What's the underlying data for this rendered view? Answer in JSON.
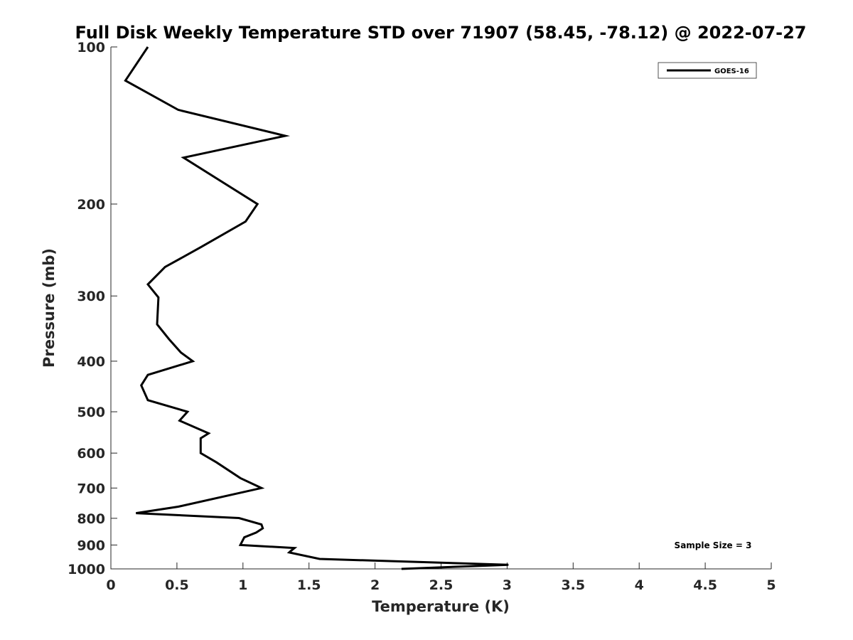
{
  "chart_data": {
    "type": "line",
    "title": "Full Disk Weekly Temperature STD over 71907 (58.45, -78.12) @ 2022-07-27",
    "xlabel": "Temperature (K)",
    "ylabel": "Pressure (mb)",
    "xlim": [
      0,
      5
    ],
    "ylim": [
      100,
      1000
    ],
    "y_scale": "log",
    "y_reversed": true,
    "grid": false,
    "legend_placement": "top-right",
    "x_ticks": [
      "0",
      "0.5",
      "1",
      "1.5",
      "2",
      "2.5",
      "3",
      "3.5",
      "4",
      "4.5",
      "5"
    ],
    "y_ticks": [
      "100",
      "200",
      "300",
      "400",
      "500",
      "600",
      "700",
      "800",
      "900",
      "1000"
    ],
    "annotation": "Sample Size = 3",
    "series": [
      {
        "name": "GOES-16",
        "color": "#000000",
        "points": [
          {
            "t": 0.28,
            "p": 100
          },
          {
            "t": 0.11,
            "p": 116
          },
          {
            "t": 0.51,
            "p": 132
          },
          {
            "t": 1.32,
            "p": 148
          },
          {
            "t": 0.55,
            "p": 163
          },
          {
            "t": 1.11,
            "p": 200
          },
          {
            "t": 1.02,
            "p": 216
          },
          {
            "t": 0.68,
            "p": 242
          },
          {
            "t": 0.41,
            "p": 264
          },
          {
            "t": 0.28,
            "p": 285
          },
          {
            "t": 0.36,
            "p": 302
          },
          {
            "t": 0.35,
            "p": 340
          },
          {
            "t": 0.44,
            "p": 363
          },
          {
            "t": 0.53,
            "p": 385
          },
          {
            "t": 0.62,
            "p": 400
          },
          {
            "t": 0.28,
            "p": 425
          },
          {
            "t": 0.23,
            "p": 445
          },
          {
            "t": 0.28,
            "p": 475
          },
          {
            "t": 0.58,
            "p": 500
          },
          {
            "t": 0.52,
            "p": 520
          },
          {
            "t": 0.74,
            "p": 550
          },
          {
            "t": 0.68,
            "p": 562
          },
          {
            "t": 0.68,
            "p": 600
          },
          {
            "t": 0.8,
            "p": 625
          },
          {
            "t": 0.98,
            "p": 670
          },
          {
            "t": 1.14,
            "p": 700
          },
          {
            "t": 0.51,
            "p": 760
          },
          {
            "t": 0.19,
            "p": 782
          },
          {
            "t": 0.97,
            "p": 799
          },
          {
            "t": 1.14,
            "p": 822
          },
          {
            "t": 1.15,
            "p": 836
          },
          {
            "t": 1.1,
            "p": 852
          },
          {
            "t": 1.01,
            "p": 870
          },
          {
            "t": 0.98,
            "p": 900
          },
          {
            "t": 1.39,
            "p": 912
          },
          {
            "t": 1.36,
            "p": 925
          },
          {
            "t": 1.35,
            "p": 930
          },
          {
            "t": 1.58,
            "p": 957
          },
          {
            "t": 3.01,
            "p": 982
          },
          {
            "t": 2.2,
            "p": 1000
          }
        ]
      }
    ]
  }
}
